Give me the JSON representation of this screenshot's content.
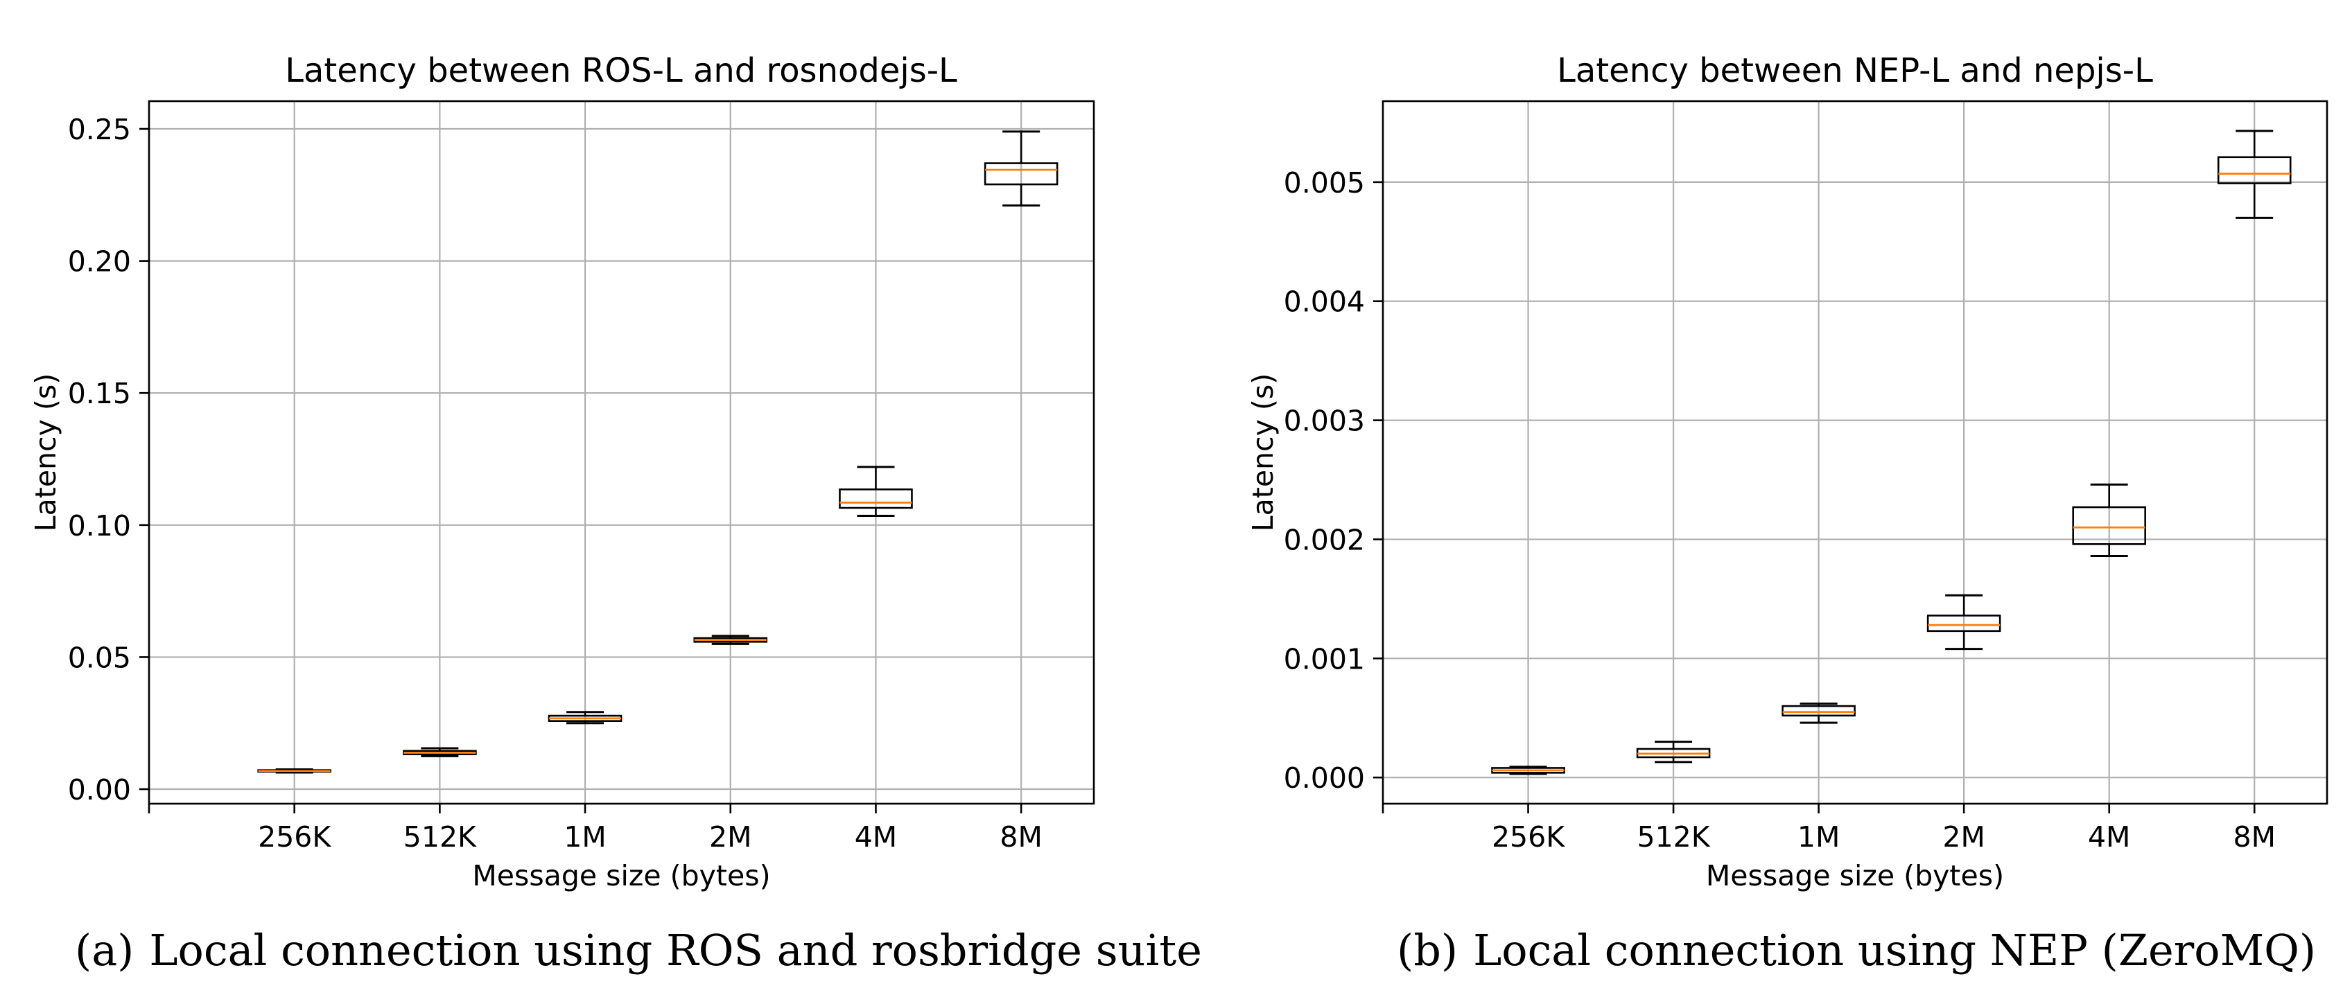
{
  "chart_data": [
    {
      "type": "box",
      "title": "Latency between ROS-L and rosnodejs-L",
      "xlabel": "Message size (bytes)",
      "ylabel": "Latency (s)",
      "categories": [
        "256K",
        "512K",
        "1M",
        "2M",
        "4M",
        "8M"
      ],
      "ylim": [
        -0.0055,
        0.2605
      ],
      "yticks": [
        0.0,
        0.05,
        0.1,
        0.15,
        0.2,
        0.25
      ],
      "ytick_labels": [
        "0.00",
        "0.05",
        "0.10",
        "0.15",
        "0.20",
        "0.25"
      ],
      "grid": true,
      "boxes": [
        {
          "category": "256K",
          "whisker_low": 0.0063,
          "q1": 0.0066,
          "median": 0.0069,
          "q3": 0.0072,
          "whisker_high": 0.0075
        },
        {
          "category": "512K",
          "whisker_low": 0.0125,
          "q1": 0.0132,
          "median": 0.0138,
          "q3": 0.0145,
          "whisker_high": 0.0155
        },
        {
          "category": "1M",
          "whisker_low": 0.025,
          "q1": 0.0258,
          "median": 0.0268,
          "q3": 0.0278,
          "whisker_high": 0.0292
        },
        {
          "category": "2M",
          "whisker_low": 0.055,
          "q1": 0.0558,
          "median": 0.0565,
          "q3": 0.0572,
          "whisker_high": 0.058
        },
        {
          "category": "4M",
          "whisker_low": 0.1035,
          "q1": 0.1065,
          "median": 0.1085,
          "q3": 0.1135,
          "whisker_high": 0.122
        },
        {
          "category": "8M",
          "whisker_low": 0.221,
          "q1": 0.229,
          "median": 0.2345,
          "q3": 0.237,
          "whisker_high": 0.249
        }
      ],
      "caption_label": "(a)",
      "caption": "Local connection using ROS and rosbridge suite"
    },
    {
      "type": "box",
      "title": "Latency between NEP-L and nepjs-L",
      "xlabel": "Message size (bytes)",
      "ylabel": "Latency (s)",
      "categories": [
        "256K",
        "512K",
        "1M",
        "2M",
        "4M",
        "8M"
      ],
      "ylim": [
        -0.00022,
        0.00568
      ],
      "yticks": [
        0.0,
        0.001,
        0.002,
        0.003,
        0.004,
        0.005
      ],
      "ytick_labels": [
        "0.000",
        "0.001",
        "0.002",
        "0.003",
        "0.004",
        "0.005"
      ],
      "grid": true,
      "boxes": [
        {
          "category": "256K",
          "whisker_low": 3e-05,
          "q1": 4e-05,
          "median": 6e-05,
          "q3": 8e-05,
          "whisker_high": 9e-05
        },
        {
          "category": "512K",
          "whisker_low": 0.00013,
          "q1": 0.00017,
          "median": 0.0002,
          "q3": 0.00024,
          "whisker_high": 0.0003
        },
        {
          "category": "1M",
          "whisker_low": 0.00046,
          "q1": 0.00052,
          "median": 0.00055,
          "q3": 0.0006,
          "whisker_high": 0.00062
        },
        {
          "category": "2M",
          "whisker_low": 0.00108,
          "q1": 0.00123,
          "median": 0.00128,
          "q3": 0.00136,
          "whisker_high": 0.00153
        },
        {
          "category": "4M",
          "whisker_low": 0.00186,
          "q1": 0.00196,
          "median": 0.0021,
          "q3": 0.00227,
          "whisker_high": 0.00246
        },
        {
          "category": "8M",
          "whisker_low": 0.0047,
          "q1": 0.00499,
          "median": 0.00507,
          "q3": 0.00521,
          "whisker_high": 0.00543
        }
      ],
      "caption_label": "(b)",
      "caption": "Local connection using NEP (ZeroMQ)"
    }
  ],
  "colors": {
    "median": "#ff7f0e",
    "box": "#000000",
    "grid": "#b0b0b0",
    "background": "#ffffff"
  }
}
